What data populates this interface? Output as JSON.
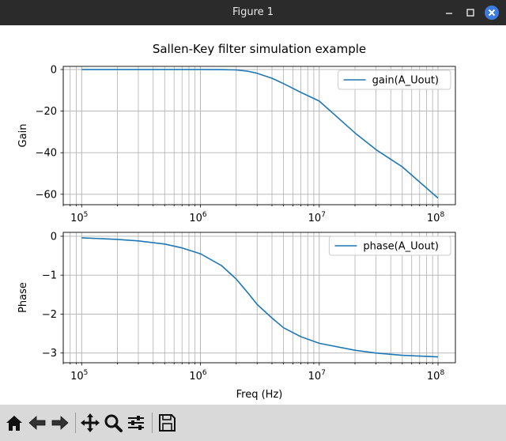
{
  "window": {
    "title": "Figure 1"
  },
  "toolbar": {
    "items": [
      {
        "name": "home-icon"
      },
      {
        "name": "back-icon"
      },
      {
        "name": "forward-icon"
      },
      {
        "name": "pan-icon"
      },
      {
        "name": "zoom-icon"
      },
      {
        "name": "configure-subplots-icon"
      },
      {
        "name": "save-icon"
      }
    ]
  },
  "chart_data": [
    {
      "type": "line",
      "title": "Sallen-Key filter simulation example",
      "xlabel": "",
      "ylabel": "Gain",
      "xscale": "log",
      "xlim": [
        70000,
        140000000
      ],
      "ylim": [
        -65,
        1.5
      ],
      "yticks": [
        0,
        -20,
        -40,
        -60
      ],
      "ytick_labels": [
        "0",
        "−20",
        "−40",
        "−60"
      ],
      "xticks": [
        100000,
        1000000,
        10000000,
        100000000
      ],
      "xtick_labels": [
        [
          "10",
          "5"
        ],
        [
          "10",
          "6"
        ],
        [
          "10",
          "7"
        ],
        [
          "10",
          "8"
        ]
      ],
      "grid": true,
      "legend": "top-right",
      "series": [
        {
          "name": "gain(A_Uout)",
          "color": "#1f77b4",
          "x": [
            100000,
            300000,
            1000000,
            1500000,
            2000000,
            2500000,
            3000000,
            4000000,
            5000000,
            7000000,
            10000000,
            20000000,
            30000000,
            50000000,
            100000000
          ],
          "y": [
            0,
            0,
            0,
            -0.05,
            -0.2,
            -0.8,
            -1.8,
            -4.2,
            -6.8,
            -11.0,
            -15.2,
            -30.5,
            -38.5,
            -46.8,
            -61.8
          ]
        }
      ]
    },
    {
      "type": "line",
      "title": "",
      "xlabel": "Freq (Hz)",
      "ylabel": "Phase",
      "xscale": "log",
      "xlim": [
        70000,
        140000000
      ],
      "ylim": [
        -3.25,
        0.1
      ],
      "yticks": [
        0,
        -1,
        -2,
        -3
      ],
      "ytick_labels": [
        "0",
        "−1",
        "−2",
        "−3"
      ],
      "xticks": [
        100000,
        1000000,
        10000000,
        100000000
      ],
      "xtick_labels": [
        [
          "10",
          "5"
        ],
        [
          "10",
          "6"
        ],
        [
          "10",
          "7"
        ],
        [
          "10",
          "8"
        ]
      ],
      "grid": true,
      "legend": "top-right",
      "series": [
        {
          "name": "phase(A_Uout)",
          "color": "#1f77b4",
          "x": [
            100000,
            200000,
            300000,
            500000,
            700000,
            1000000,
            1500000,
            2000000,
            2500000,
            3000000,
            4000000,
            5000000,
            7000000,
            10000000,
            20000000,
            30000000,
            50000000,
            100000000
          ],
          "y": [
            -0.04,
            -0.08,
            -0.12,
            -0.2,
            -0.3,
            -0.45,
            -0.75,
            -1.1,
            -1.45,
            -1.75,
            -2.1,
            -2.35,
            -2.58,
            -2.75,
            -2.93,
            -3.0,
            -3.06,
            -3.1
          ]
        }
      ]
    }
  ]
}
